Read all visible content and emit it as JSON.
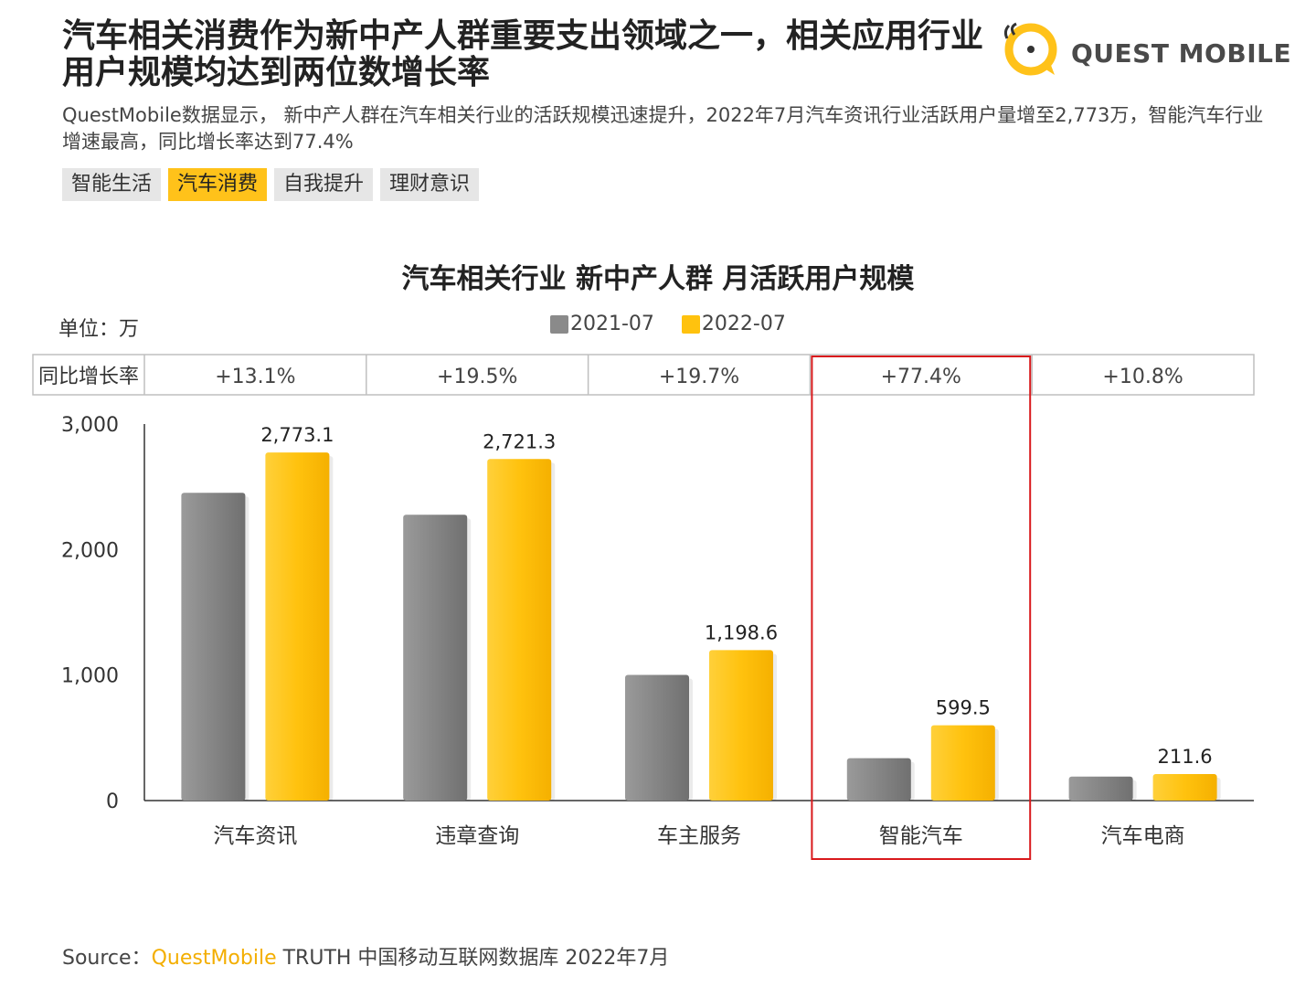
{
  "header": {
    "title": "汽车相关消费作为新中产人群重要支出领域之一，相关应用行业用户规模均达到两位数增长率",
    "logo_text": "QUEST MOBILE",
    "description": "QuestMobile数据显示， 新中产人群在汽车相关行业的活跃规模迅速提升，2022年7月汽车资讯行业活跃用户量增至2,773万，智能汽车行业增速最高，同比增长率达到77.4%"
  },
  "tags": [
    {
      "label": "智能生活",
      "active": false
    },
    {
      "label": "汽车消费",
      "active": true
    },
    {
      "label": "自我提升",
      "active": false
    },
    {
      "label": "理财意识",
      "active": false
    }
  ],
  "chart_data": {
    "type": "bar",
    "title": "汽车相关行业 新中产人群 月活跃用户规模",
    "unit_label": "单位：万",
    "categories": [
      "汽车资讯",
      "违章查询",
      "车主服务",
      "智能汽车",
      "汽车电商"
    ],
    "series": [
      {
        "name": "2021-07",
        "values": [
          2452,
          2277,
          1001,
          338,
          191
        ],
        "color": "#8a8a8a"
      },
      {
        "name": "2022-07",
        "values": [
          2773.1,
          2721.3,
          1198.6,
          599.5,
          211.6
        ],
        "color": "#ffc20e"
      }
    ],
    "value_labels": [
      "2,773.1",
      "2,721.3",
      "1,198.6",
      "599.5",
      "211.6"
    ],
    "growth_row_label": "同比增长率",
    "growth_rates": [
      "+13.1%",
      "+19.5%",
      "+19.7%",
      "+77.4%",
      "+10.8%"
    ],
    "highlight_category": "智能汽车",
    "ylim": [
      0,
      3000
    ],
    "yticks": [
      0,
      1000,
      2000,
      3000
    ],
    "ytick_labels": [
      "0",
      "1,000",
      "2,000",
      "3,000"
    ],
    "highlight_color": "#d9191c"
  },
  "footer": {
    "source_prefix": "Source：",
    "source_brand": "QuestMobile",
    "source_rest": " TRUTH 中国移动互联网数据库 2022年7月"
  }
}
